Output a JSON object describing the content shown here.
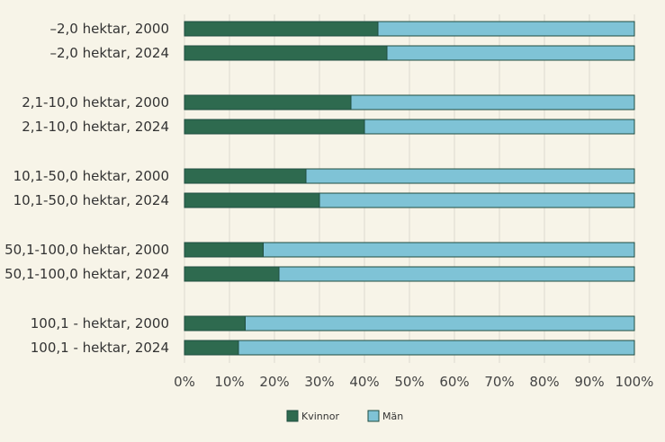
{
  "chart_data": {
    "type": "bar",
    "stacked": true,
    "orientation": "horizontal",
    "categories": [
      "–2,0 hektar, 2000",
      "–2,0 hektar, 2024",
      "2,1-10,0 hektar, 2000",
      "2,1-10,0 hektar, 2024",
      "10,1-50,0 hektar, 2000",
      "10,1-50,0 hektar, 2024",
      "50,1-100,0 hektar, 2000",
      "50,1-100,0 hektar, 2024",
      "100,1 - hektar, 2000",
      "100,1 - hektar, 2024"
    ],
    "series": [
      {
        "name": "Kvinnor",
        "color": "#2e6a4f",
        "values": [
          43,
          45,
          37,
          40,
          27,
          30,
          17.5,
          21,
          13.5,
          12
        ]
      },
      {
        "name": "Män",
        "color": "#7fc3d6",
        "values": [
          57,
          55,
          63,
          60,
          73,
          70,
          82.5,
          79,
          86.5,
          88
        ]
      }
    ],
    "xlim": [
      0,
      100
    ],
    "x_ticks": [
      "0%",
      "10%",
      "20%",
      "30%",
      "40%",
      "50%",
      "60%",
      "70%",
      "80%",
      "90%",
      "100%"
    ],
    "grid": true,
    "legend_position": "bottom",
    "title": "",
    "xlabel": "",
    "ylabel": ""
  }
}
